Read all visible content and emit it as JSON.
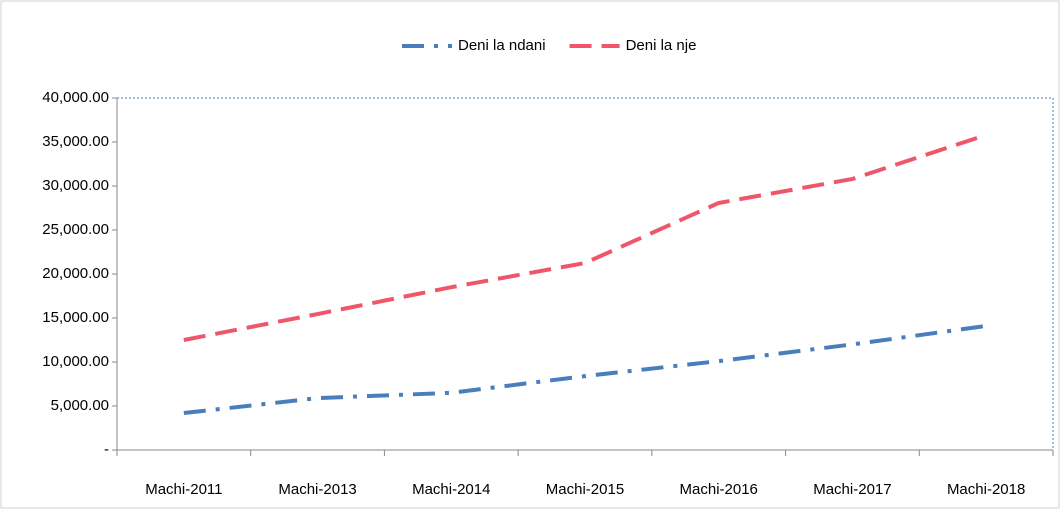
{
  "chart_data": {
    "type": "line",
    "categories": [
      "Machi-2011",
      "Machi-2013",
      "Machi-2014",
      "Machi-2015",
      "Machi-2016",
      "Machi-2017",
      "Machi-2018"
    ],
    "series": [
      {
        "name": "Deni la ndani",
        "color": "#4a7ebb",
        "dash": "dashdot",
        "values": [
          4200,
          5900,
          6500,
          8400,
          10100,
          12000,
          14100
        ]
      },
      {
        "name": "Deni la nje",
        "color": "#f0566a",
        "dash": "dash",
        "values": [
          12500,
          15450,
          18500,
          21250,
          28070,
          30800,
          35800
        ]
      }
    ],
    "ylim": [
      0,
      40000
    ],
    "yticks": [
      {
        "value": 0,
        "label": "-"
      },
      {
        "value": 5000,
        "label": "5,000.00"
      },
      {
        "value": 10000,
        "label": "10,000.00"
      },
      {
        "value": 15000,
        "label": "15,000.00"
      },
      {
        "value": 20000,
        "label": "20,000.00"
      },
      {
        "value": 25000,
        "label": "25,000.00"
      },
      {
        "value": 30000,
        "label": "30,000.00"
      },
      {
        "value": 35000,
        "label": "35,000.00"
      },
      {
        "value": 40000,
        "label": "40,000.00"
      }
    ],
    "legend": "top"
  }
}
